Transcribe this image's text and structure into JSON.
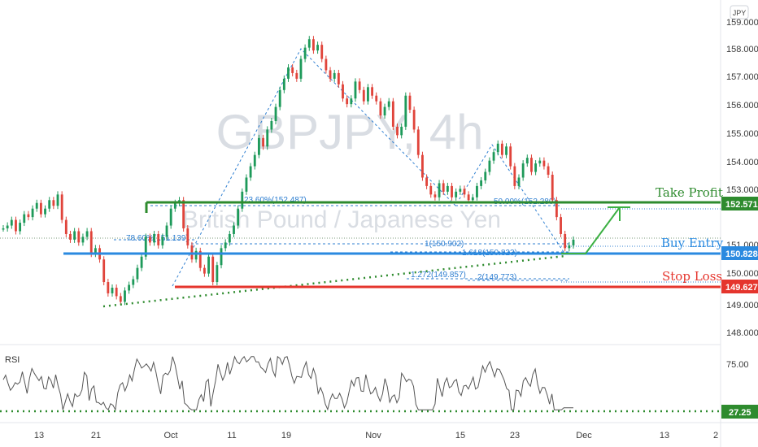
{
  "chart_data": {
    "type": "candlestick",
    "symbol_watermark": "GBPJPY, 4h",
    "description_watermark": "British Pound / Japanese Yen",
    "currency_badge": "JPY",
    "price_axis": {
      "ylim": [
        147.6,
        159.4
      ],
      "ticks": [
        "159.000",
        "158.000",
        "157.000",
        "156.000",
        "155.000",
        "154.000",
        "153.000",
        "152.000",
        "151.000",
        "150.000",
        "149.000",
        "148.000"
      ]
    },
    "time_axis": {
      "ticks": [
        "13",
        "21",
        "Oct",
        "11",
        "19",
        "Nov",
        "15",
        "23",
        "Dec",
        "13",
        "2"
      ]
    },
    "levels": {
      "take_profit": {
        "label": "Take Profit",
        "value": "152.571",
        "color": "#2e8b2e"
      },
      "buy_entry": {
        "label": "Buy Entry",
        "value": "150.828",
        "color": "#2a8ae0"
      },
      "stop_loss": {
        "label": "Stop Loss",
        "value": "149.627",
        "color": "#e5352d"
      }
    },
    "fib_labels": [
      "23.60%(152.487)",
      "50.00%(152.280)",
      "78.60%(151.139)",
      "1(150.902)",
      "1.618(150.823)",
      "1.272(149.857)",
      "2(149.773)"
    ],
    "rsi": {
      "label": "RSI",
      "ticks": [
        "75.00",
        "27.25"
      ],
      "current_value": "27.25",
      "ylim": [
        15,
        85
      ]
    },
    "price_series": [
      151.6,
      151.7,
      151.9,
      151.5,
      151.8,
      152.1,
      152.0,
      152.3,
      152.5,
      152.1,
      152.3,
      152.6,
      152.4,
      152.8,
      151.9,
      151.4,
      151.2,
      151.5,
      151.1,
      151.3,
      151.5,
      150.7,
      150.9,
      150.5,
      149.7,
      149.3,
      149.5,
      149.2,
      149.0,
      149.4,
      149.6,
      149.8,
      150.2,
      150.6,
      151.3,
      151.1,
      151.4,
      151.0,
      151.3,
      151.7,
      152.3,
      152.5,
      152.6,
      151.6,
      151.0,
      150.5,
      150.8,
      150.2,
      150.0,
      150.6,
      149.7,
      150.3,
      150.9,
      151.1,
      151.4,
      151.7,
      152.3,
      152.9,
      153.4,
      153.8,
      154.2,
      154.8,
      154.5,
      155.1,
      155.4,
      155.9,
      156.5,
      156.9,
      157.3,
      157.1,
      156.9,
      157.6,
      158.0,
      158.3,
      157.9,
      158.1,
      157.6,
      157.2,
      156.9,
      157.1,
      156.7,
      156.2,
      156.0,
      156.2,
      156.8,
      156.5,
      156.1,
      156.6,
      156.3,
      156.1,
      155.6,
      155.9,
      156.1,
      155.2,
      154.9,
      155.2,
      156.3,
      155.8,
      155.1,
      154.2,
      153.4,
      153.1,
      152.8,
      152.7,
      153.2,
      152.9,
      153.1,
      152.7,
      152.9,
      153.0,
      152.8,
      152.6,
      152.7,
      153.1,
      153.3,
      153.6,
      154.0,
      154.3,
      154.6,
      154.2,
      154.5,
      153.8,
      153.1,
      153.4,
      153.9,
      154.1,
      153.6,
      153.9,
      154.0,
      153.8,
      153.5,
      152.6,
      152.0,
      151.4,
      150.9,
      151.0,
      151.2
    ]
  }
}
